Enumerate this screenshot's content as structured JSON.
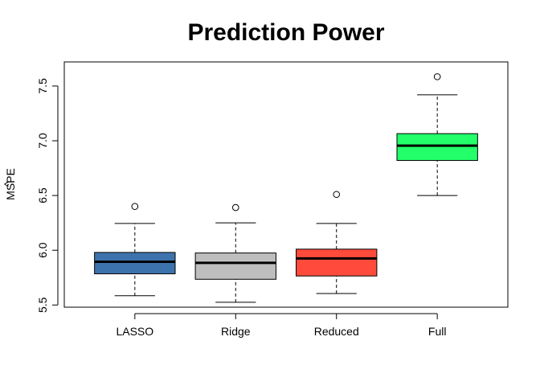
{
  "chart_data": {
    "type": "box",
    "title": "Prediction Power",
    "xlabel": "",
    "ylabel": "MSPE",
    "ylabel_hat": "^",
    "ylim": [
      5.48,
      7.72
    ],
    "yticks": [
      "5.5",
      "6.0",
      "6.5",
      "7.0",
      "7.5"
    ],
    "ytick_values": [
      5.5,
      6.0,
      6.5,
      7.0,
      7.5
    ],
    "grid": false,
    "categories": [
      "LASSO",
      "Ridge",
      "Reduced",
      "Full"
    ],
    "boxes": [
      {
        "name": "LASSO",
        "color": "#3D73AC",
        "whisker_low": 5.585,
        "q1": 5.785,
        "median": 5.895,
        "q3": 5.98,
        "whisker_high": 6.245,
        "outliers": [
          6.4
        ]
      },
      {
        "name": "Ridge",
        "color": "#BEBEBE",
        "whisker_low": 5.525,
        "q1": 5.735,
        "median": 5.885,
        "q3": 5.975,
        "whisker_high": 6.25,
        "outliers": [
          6.39
        ]
      },
      {
        "name": "Reduced",
        "color": "#FF4A3C",
        "whisker_low": 5.605,
        "q1": 5.765,
        "median": 5.925,
        "q3": 6.01,
        "whisker_high": 6.245,
        "outliers": [
          6.51
        ]
      },
      {
        "name": "Full",
        "color": "#22FF6A",
        "whisker_low": 6.5,
        "q1": 6.82,
        "median": 6.955,
        "q3": 7.065,
        "whisker_high": 7.42,
        "outliers": [
          7.585
        ]
      }
    ]
  }
}
